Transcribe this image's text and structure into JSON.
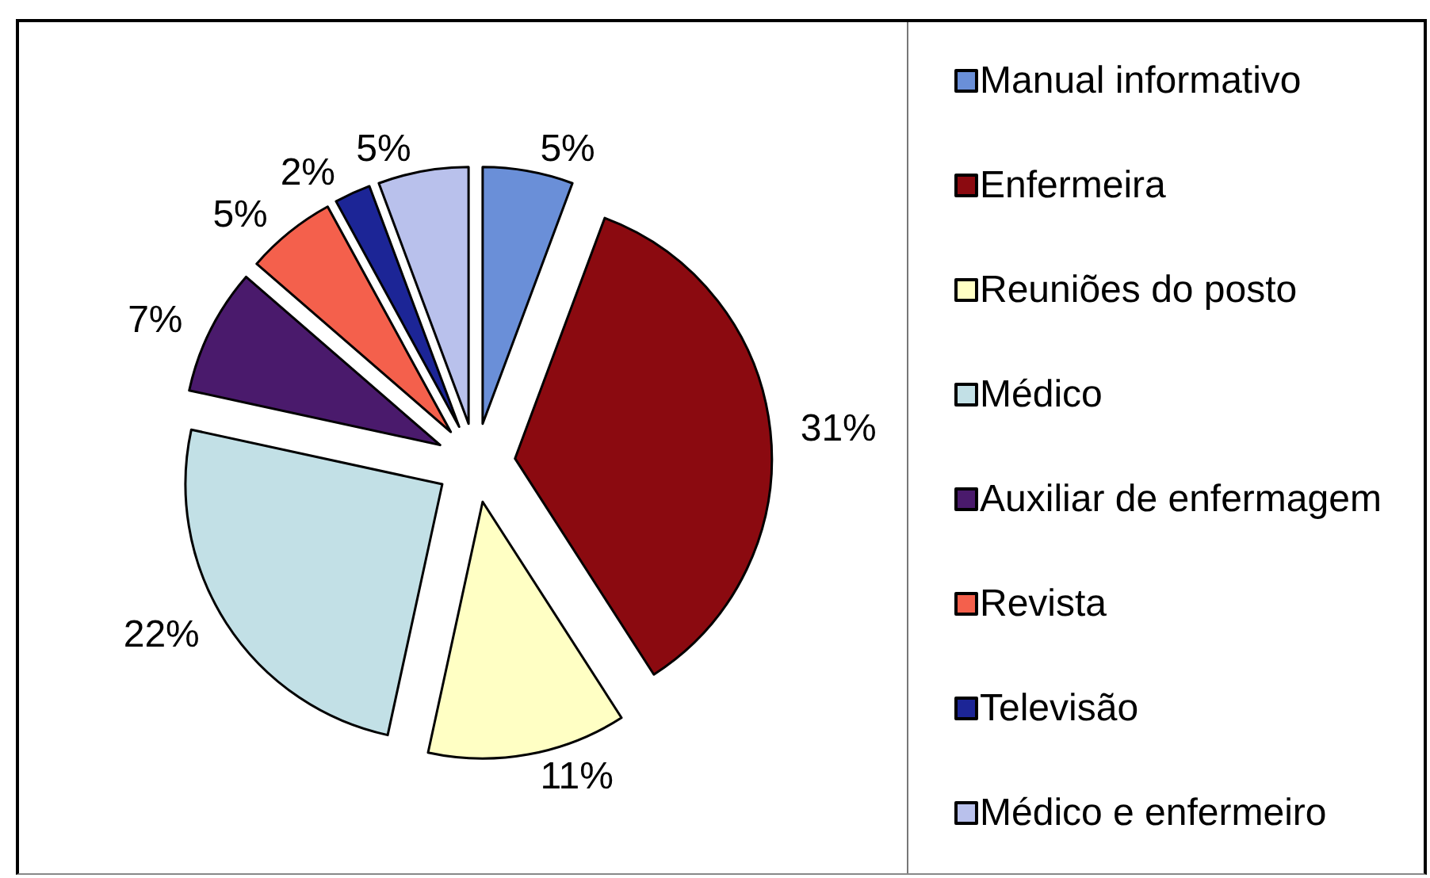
{
  "chart_data": {
    "type": "pie",
    "categories": [
      "Manual informativo",
      "Enfermeira",
      "Reuniões do posto",
      "Médico",
      "Auxiliar de enfermagem",
      "Revista",
      "Televisão",
      "Médico e enfermeiro"
    ],
    "values": [
      5,
      31,
      11,
      22,
      7,
      5,
      2,
      5
    ],
    "value_labels": [
      "5%",
      "31%",
      "11%",
      "22%",
      "7%",
      "5%",
      "2%",
      "5%"
    ],
    "colors": [
      "#6a8fd8",
      "#8b0a10",
      "#ffffc4",
      "#c2e0e6",
      "#4a1a6c",
      "#f4604c",
      "#1c2596",
      "#b9c1ec"
    ],
    "legend": "right"
  }
}
